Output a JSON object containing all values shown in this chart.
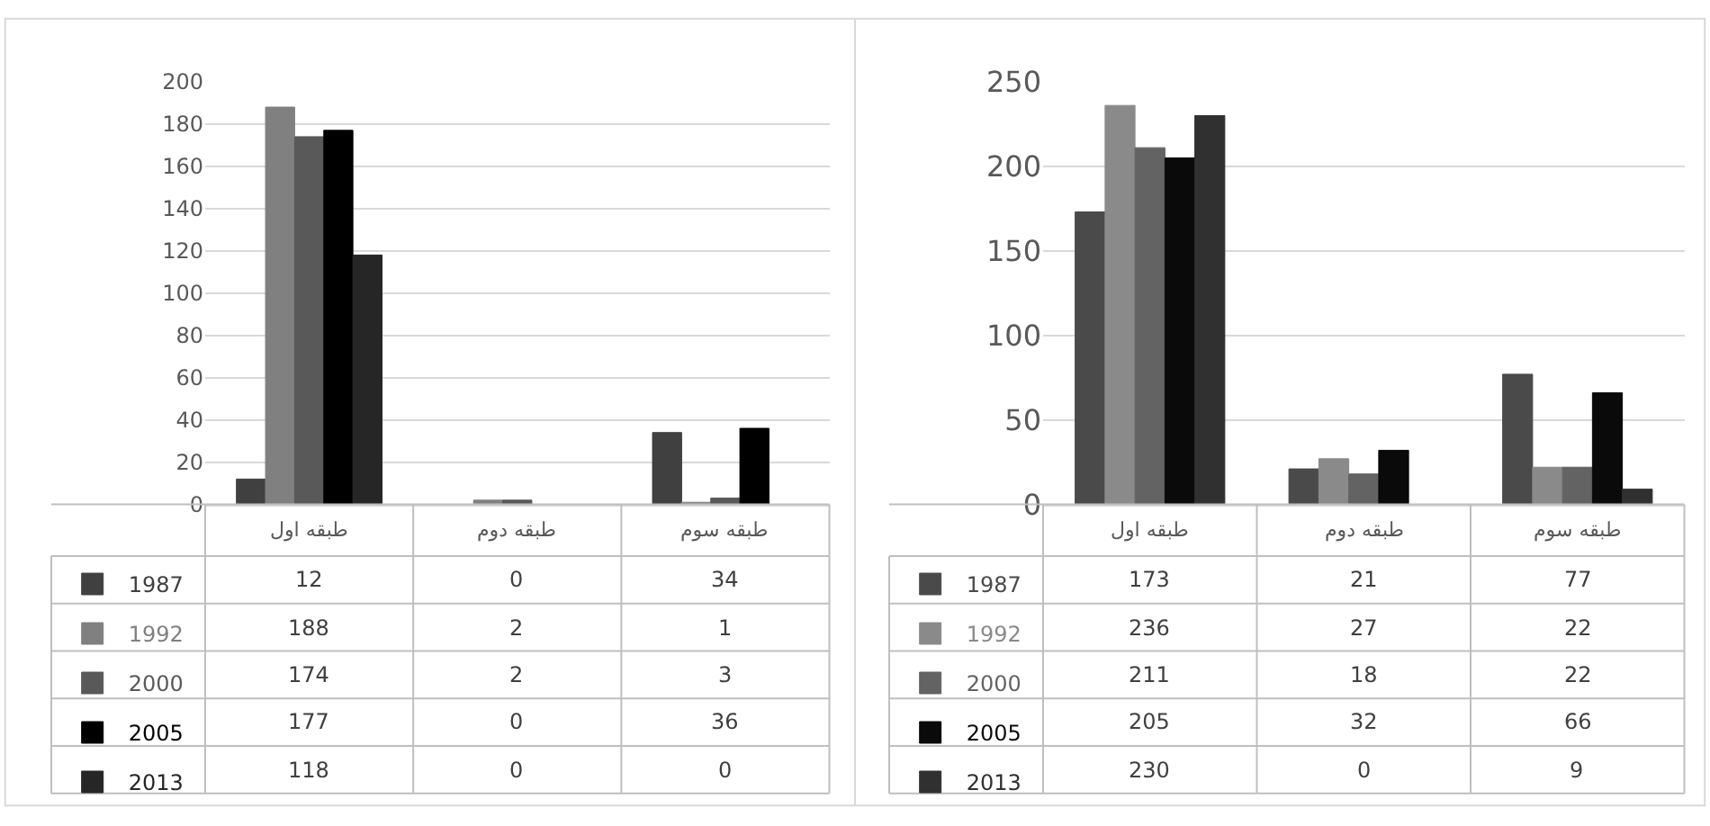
{
  "chart_data": [
    {
      "type": "bar",
      "categories": [
        "طبقه اول",
        "طبقه دوم",
        "طبقه سوم"
      ],
      "ylim": [
        0,
        200
      ],
      "yticks": [
        0,
        20,
        40,
        60,
        80,
        100,
        120,
        140,
        160,
        180,
        200
      ],
      "grid": "y",
      "legend": "bottom",
      "data_labels": true,
      "series": [
        {
          "name": "1987",
          "color": "#404040",
          "values": [
            12,
            0,
            34
          ]
        },
        {
          "name": "1992",
          "color": "#808080",
          "values": [
            188,
            2,
            1
          ]
        },
        {
          "name": "2000",
          "color": "#595959",
          "values": [
            174,
            2,
            3
          ]
        },
        {
          "name": "2005",
          "color": "#000000",
          "values": [
            177,
            0,
            36
          ]
        },
        {
          "name": "2013",
          "color": "#262626",
          "values": [
            118,
            0,
            0
          ]
        }
      ]
    },
    {
      "type": "bar",
      "categories": [
        "طبقه اول",
        "طبقه دوم",
        "طبقه سوم"
      ],
      "ylim": [
        0,
        250
      ],
      "yticks": [
        0,
        50,
        100,
        150,
        200,
        250
      ],
      "grid": "y",
      "legend": "bottom",
      "data_labels": true,
      "series": [
        {
          "name": "1987",
          "color": "#4a4a4a",
          "values": [
            173,
            21,
            77
          ]
        },
        {
          "name": "1992",
          "color": "#8a8a8a",
          "values": [
            236,
            27,
            22
          ]
        },
        {
          "name": "2000",
          "color": "#636363",
          "values": [
            211,
            18,
            22
          ]
        },
        {
          "name": "2005",
          "color": "#0a0a0a",
          "values": [
            205,
            32,
            66
          ]
        },
        {
          "name": "2013",
          "color": "#303030",
          "values": [
            230,
            0,
            9
          ]
        }
      ]
    }
  ]
}
